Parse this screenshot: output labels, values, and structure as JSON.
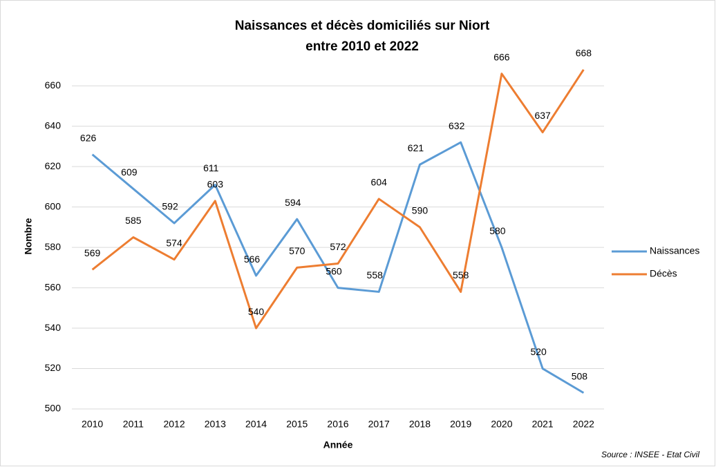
{
  "chart_data": {
    "type": "line",
    "title": "Naissances et décès domiciliés sur Niort",
    "subtitle": "entre 2010 et 2022",
    "y_label": "Nombre",
    "x_label": "Année",
    "source": "Source : INSEE - Etat Civil",
    "categories": [
      "2010",
      "2011",
      "2012",
      "2013",
      "2014",
      "2015",
      "2016",
      "2017",
      "2018",
      "2019",
      "2020",
      "2021",
      "2022"
    ],
    "series": [
      {
        "name": "Naissances",
        "color": "#5b9bd5",
        "values": [
          626,
          609,
          592,
          611,
          566,
          594,
          560,
          558,
          621,
          632,
          580,
          520,
          508
        ]
      },
      {
        "name": "Décès",
        "color": "#ed7d31",
        "values": [
          569,
          585,
          574,
          603,
          540,
          570,
          572,
          604,
          590,
          558,
          666,
          637,
          668
        ]
      }
    ],
    "ylim": [
      500,
      670
    ],
    "yticks": [
      500,
      520,
      540,
      560,
      580,
      600,
      620,
      640,
      660
    ],
    "grid": true,
    "legend": "right"
  }
}
